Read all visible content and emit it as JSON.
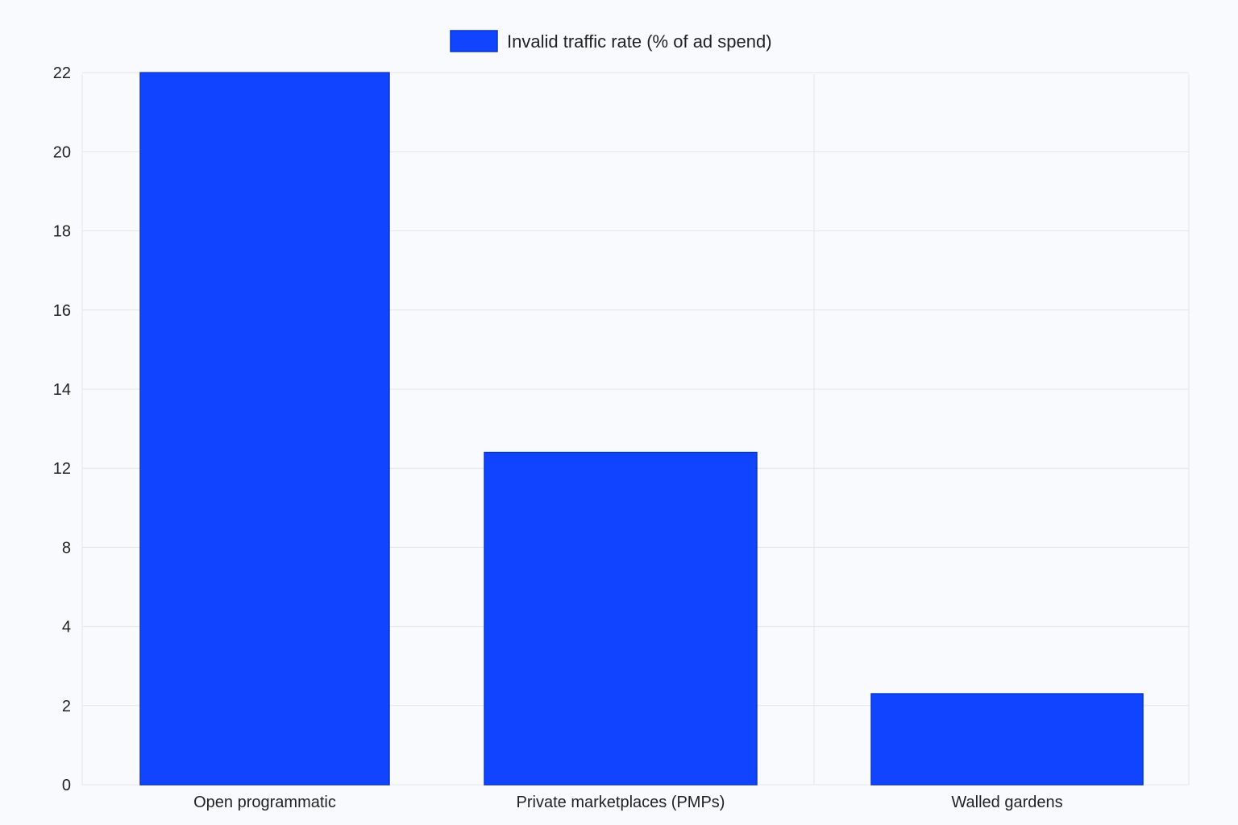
{
  "chart_data": {
    "type": "bar",
    "categories": [
      "Open programmatic",
      "Private marketplaces (PMPs)",
      "Walled gardens"
    ],
    "series": [
      {
        "name": "Invalid traffic rate (% of ad spend)",
        "values": [
          22,
          12.4,
          2.3
        ],
        "color": "#1144ff"
      }
    ],
    "y_ticks": [
      0,
      2,
      4,
      8,
      12,
      14,
      16,
      18,
      20,
      22
    ],
    "ylim": [
      0,
      22
    ],
    "grid": true,
    "legend_position": "top-center"
  }
}
